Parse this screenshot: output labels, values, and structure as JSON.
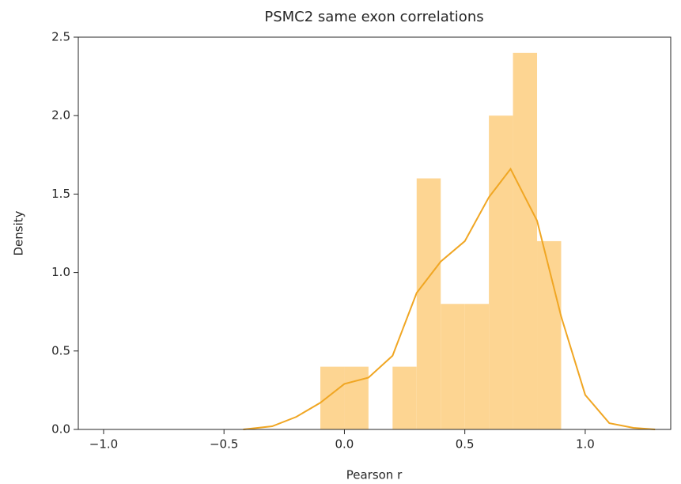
{
  "chart_data": {
    "type": "histogram",
    "title": "PSMC2 same exon correlations",
    "x_label": "Pearson r",
    "y_label": "Density",
    "bins": [
      -0.1,
      0.0,
      0.1,
      0.2,
      0.3,
      0.4,
      0.5,
      0.6,
      0.7,
      0.8,
      0.9
    ],
    "counts": [
      0.4,
      0.4,
      0,
      0.4,
      1.6,
      0.8,
      0.8,
      2.0,
      2.4,
      1.2
    ],
    "color": "#fdd592",
    "series": [
      {
        "type": "line",
        "color": "#f0a623",
        "x": [
          -0.42,
          -0.3,
          -0.2,
          -0.1,
          0.0,
          0.1,
          0.2,
          0.3,
          0.4,
          0.5,
          0.6,
          0.69,
          0.8,
          0.9,
          1.0,
          1.1,
          1.2,
          1.29
        ],
        "values": [
          0.0,
          0.02,
          0.08,
          0.17,
          0.29,
          0.33,
          0.47,
          0.87,
          1.07,
          1.2,
          1.48,
          1.66,
          1.33,
          0.72,
          0.22,
          0.04,
          0.01,
          0.0
        ]
      }
    ],
    "xlim": [
      -1.105,
      1.355
    ],
    "ylim": [
      0,
      2.5
    ],
    "xticks": [
      {
        "value": -1.0,
        "label": "−1.0"
      },
      {
        "value": -0.5,
        "label": "−0.5"
      },
      {
        "value": 0.0,
        "label": "0.0"
      },
      0.5,
      {
        "value": 1.0,
        "label": "1.0"
      }
    ],
    "yticks": [
      {
        "value": 0.0,
        "label": "0.0"
      },
      0.5,
      {
        "value": 1.0,
        "label": "1.0"
      },
      1.5,
      {
        "value": 2.0,
        "label": "2.0"
      },
      2.5
    ],
    "grid": false
  }
}
